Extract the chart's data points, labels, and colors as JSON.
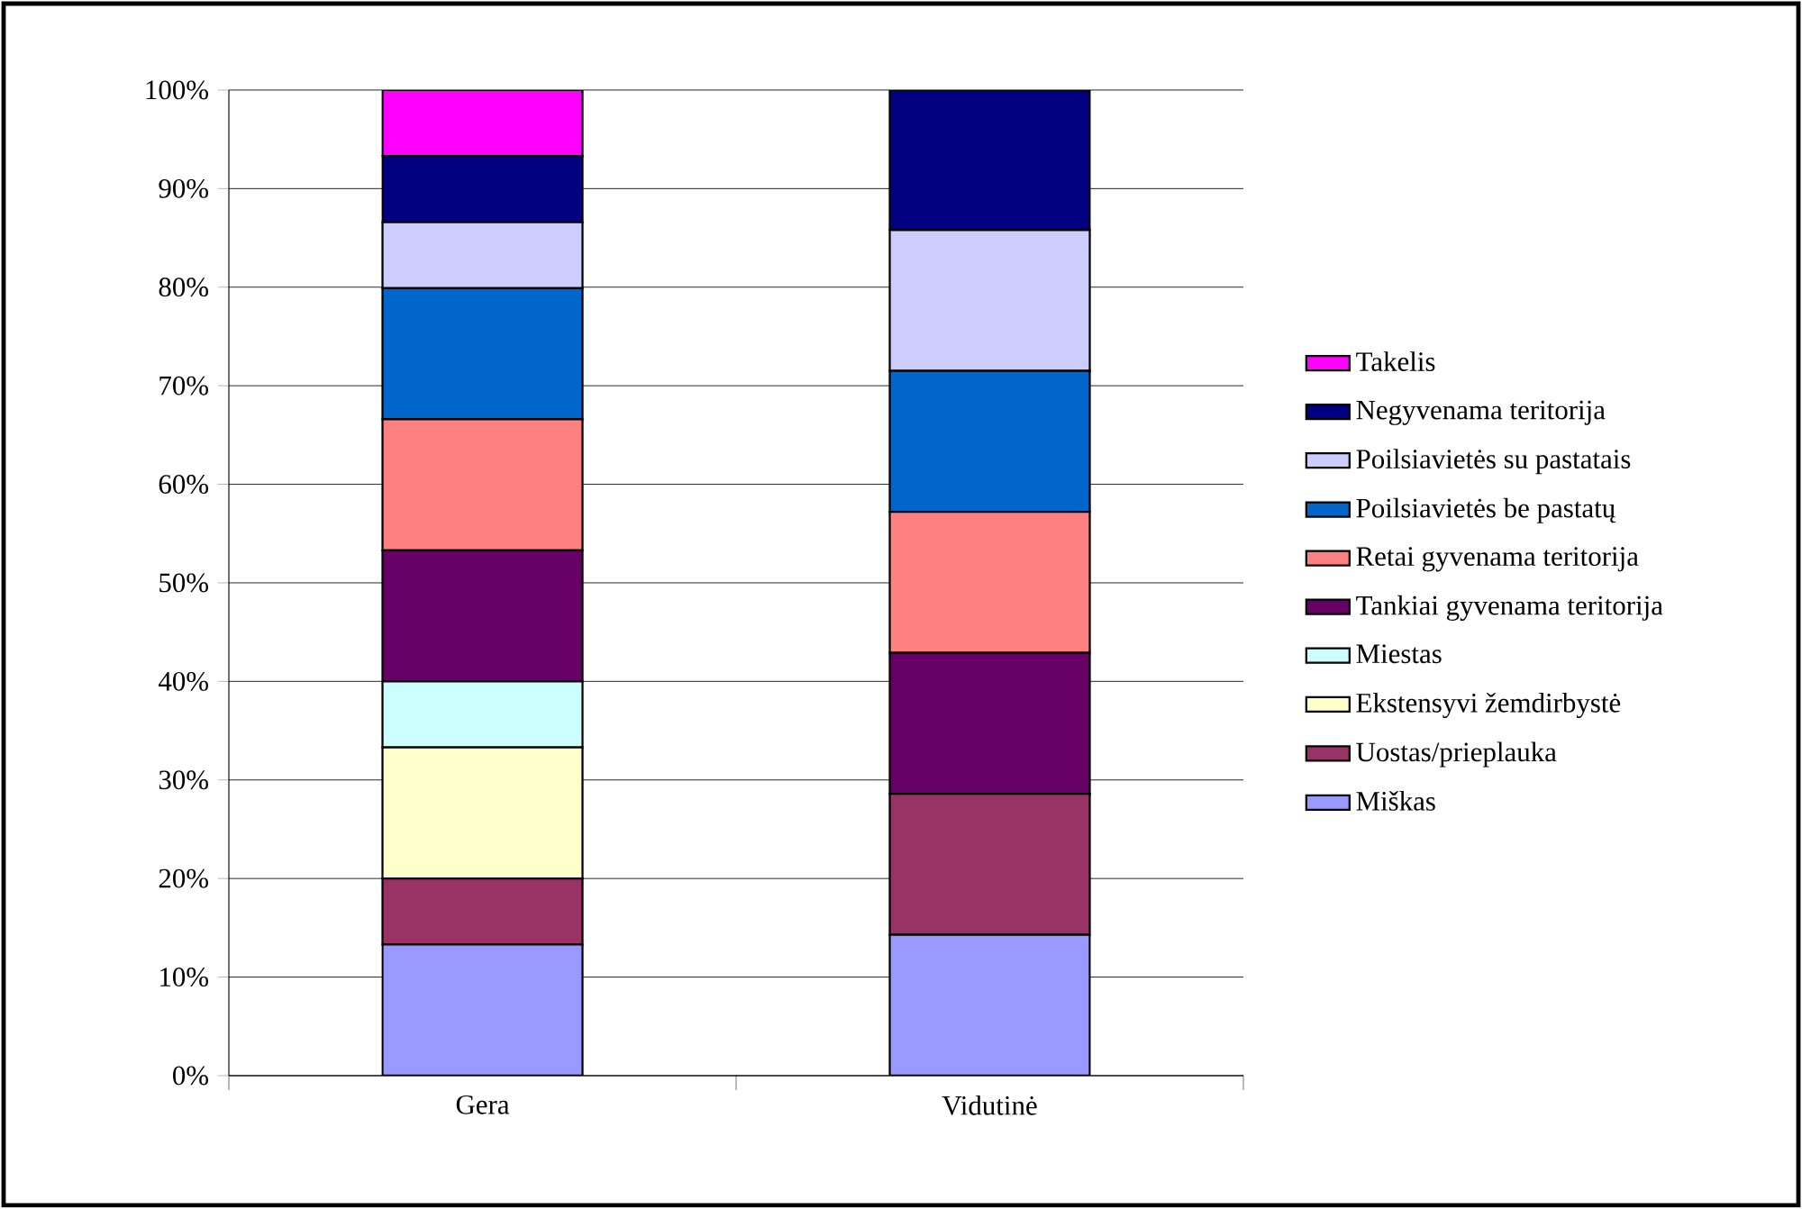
{
  "chart_data": {
    "type": "bar",
    "stacked": true,
    "categories": [
      "Gera",
      "Vidutinė"
    ],
    "series": [
      {
        "name": "Miškas",
        "color": "#9999ff",
        "values": [
          13.3,
          14.3
        ]
      },
      {
        "name": "Uostas/prieplauka",
        "color": "#993366",
        "values": [
          6.7,
          14.3
        ]
      },
      {
        "name": "Ekstensyvi žemdirbystė",
        "color": "#ffffcc",
        "values": [
          13.3,
          0
        ]
      },
      {
        "name": "Miestas",
        "color": "#ccffff",
        "values": [
          6.7,
          0
        ]
      },
      {
        "name": "Tankiai gyvenama teritorija",
        "color": "#660066",
        "values": [
          13.3,
          14.3
        ]
      },
      {
        "name": "Retai gyvenama teritorija",
        "color": "#ff8080",
        "values": [
          13.3,
          14.3
        ]
      },
      {
        "name": "Poilsiavietės be pastatų",
        "color": "#0066cc",
        "values": [
          13.3,
          14.3
        ]
      },
      {
        "name": "Poilsiavietės su pastatais",
        "color": "#ccccff",
        "values": [
          6.7,
          14.3
        ]
      },
      {
        "name": "Negyvenama teritorija",
        "color": "#000080",
        "values": [
          6.7,
          14.2
        ]
      },
      {
        "name": "Takelis",
        "color": "#ff00ff",
        "values": [
          6.7,
          0
        ]
      }
    ],
    "ylim": [
      0,
      100
    ],
    "yticks": [
      {
        "value": 0,
        "label": "0%"
      },
      {
        "value": 10,
        "label": "10%"
      },
      {
        "value": 20,
        "label": "20%"
      },
      {
        "value": 30,
        "label": "30%"
      },
      {
        "value": 40,
        "label": "40%"
      },
      {
        "value": 50,
        "label": "50%"
      },
      {
        "value": 60,
        "label": "60%"
      },
      {
        "value": 70,
        "label": "70%"
      },
      {
        "value": 80,
        "label": "80%"
      },
      {
        "value": 90,
        "label": "90%"
      },
      {
        "value": 100,
        "label": "100%"
      }
    ],
    "grid": "y",
    "legend": "right"
  }
}
